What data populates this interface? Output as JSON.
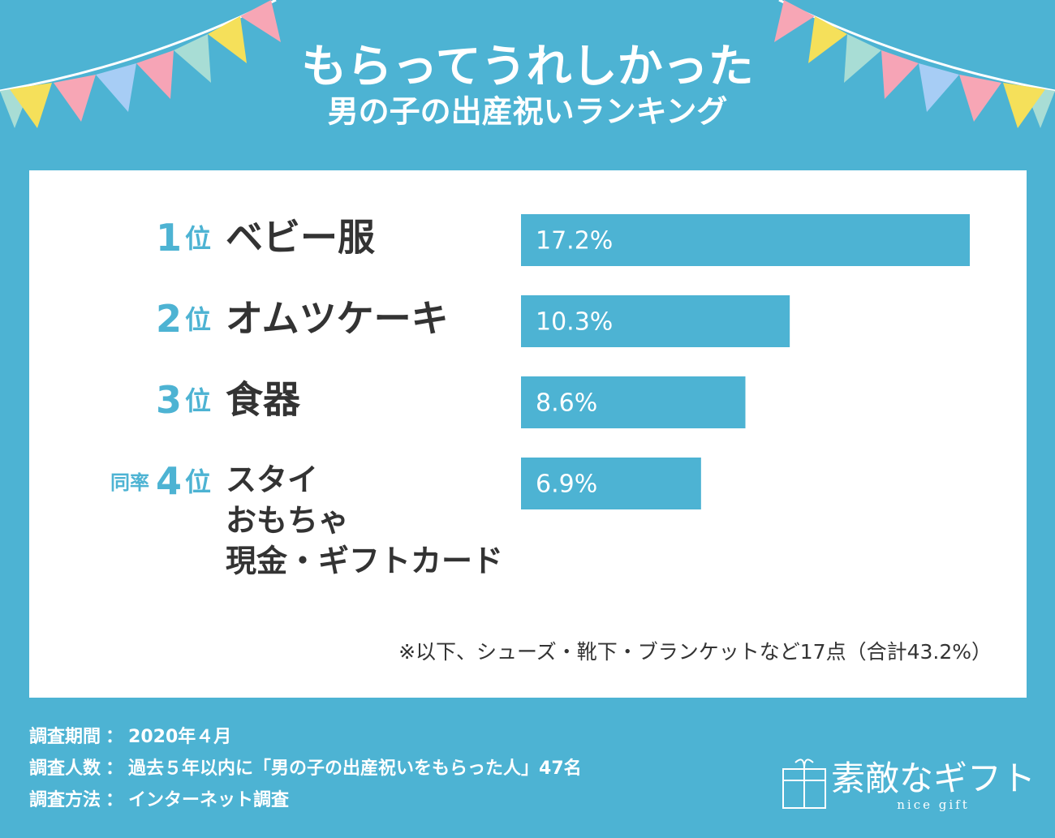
{
  "chart_data": {
    "type": "hbar",
    "title": "もらってうれしかった",
    "subtitle": "男の子の出産祝いランキング",
    "ranks": [
      {
        "number": "1",
        "suffix": "位"
      },
      {
        "number": "2",
        "suffix": "位"
      },
      {
        "number": "3",
        "suffix": "位"
      },
      {
        "prefix": "同率",
        "number": "4",
        "suffix": "位"
      }
    ],
    "categories": [
      "ベビー服",
      "オムツケーキ",
      "食器",
      [
        "スタイ",
        "おもちゃ",
        "現金・ギフトカード"
      ]
    ],
    "values": [
      17.2,
      10.3,
      8.6,
      6.9
    ],
    "value_labels": [
      "17.2%",
      "10.3%",
      "8.6%",
      "6.9%"
    ],
    "color": "#4db3d3",
    "note": "※以下、シューズ・靴下・ブランケットなど17点（合計43.2%）"
  },
  "footer": {
    "survey": [
      {
        "label": "調査期間",
        "value": "2020年４月"
      },
      {
        "label": "調査人数",
        "value": "過去５年以内に「男の子の出産祝いをもらった人」47名"
      },
      {
        "label": "調査方法",
        "value": "インターネット調査"
      }
    ],
    "logo": {
      "name": "素敵なギフト",
      "sub": "nice gift"
    }
  }
}
